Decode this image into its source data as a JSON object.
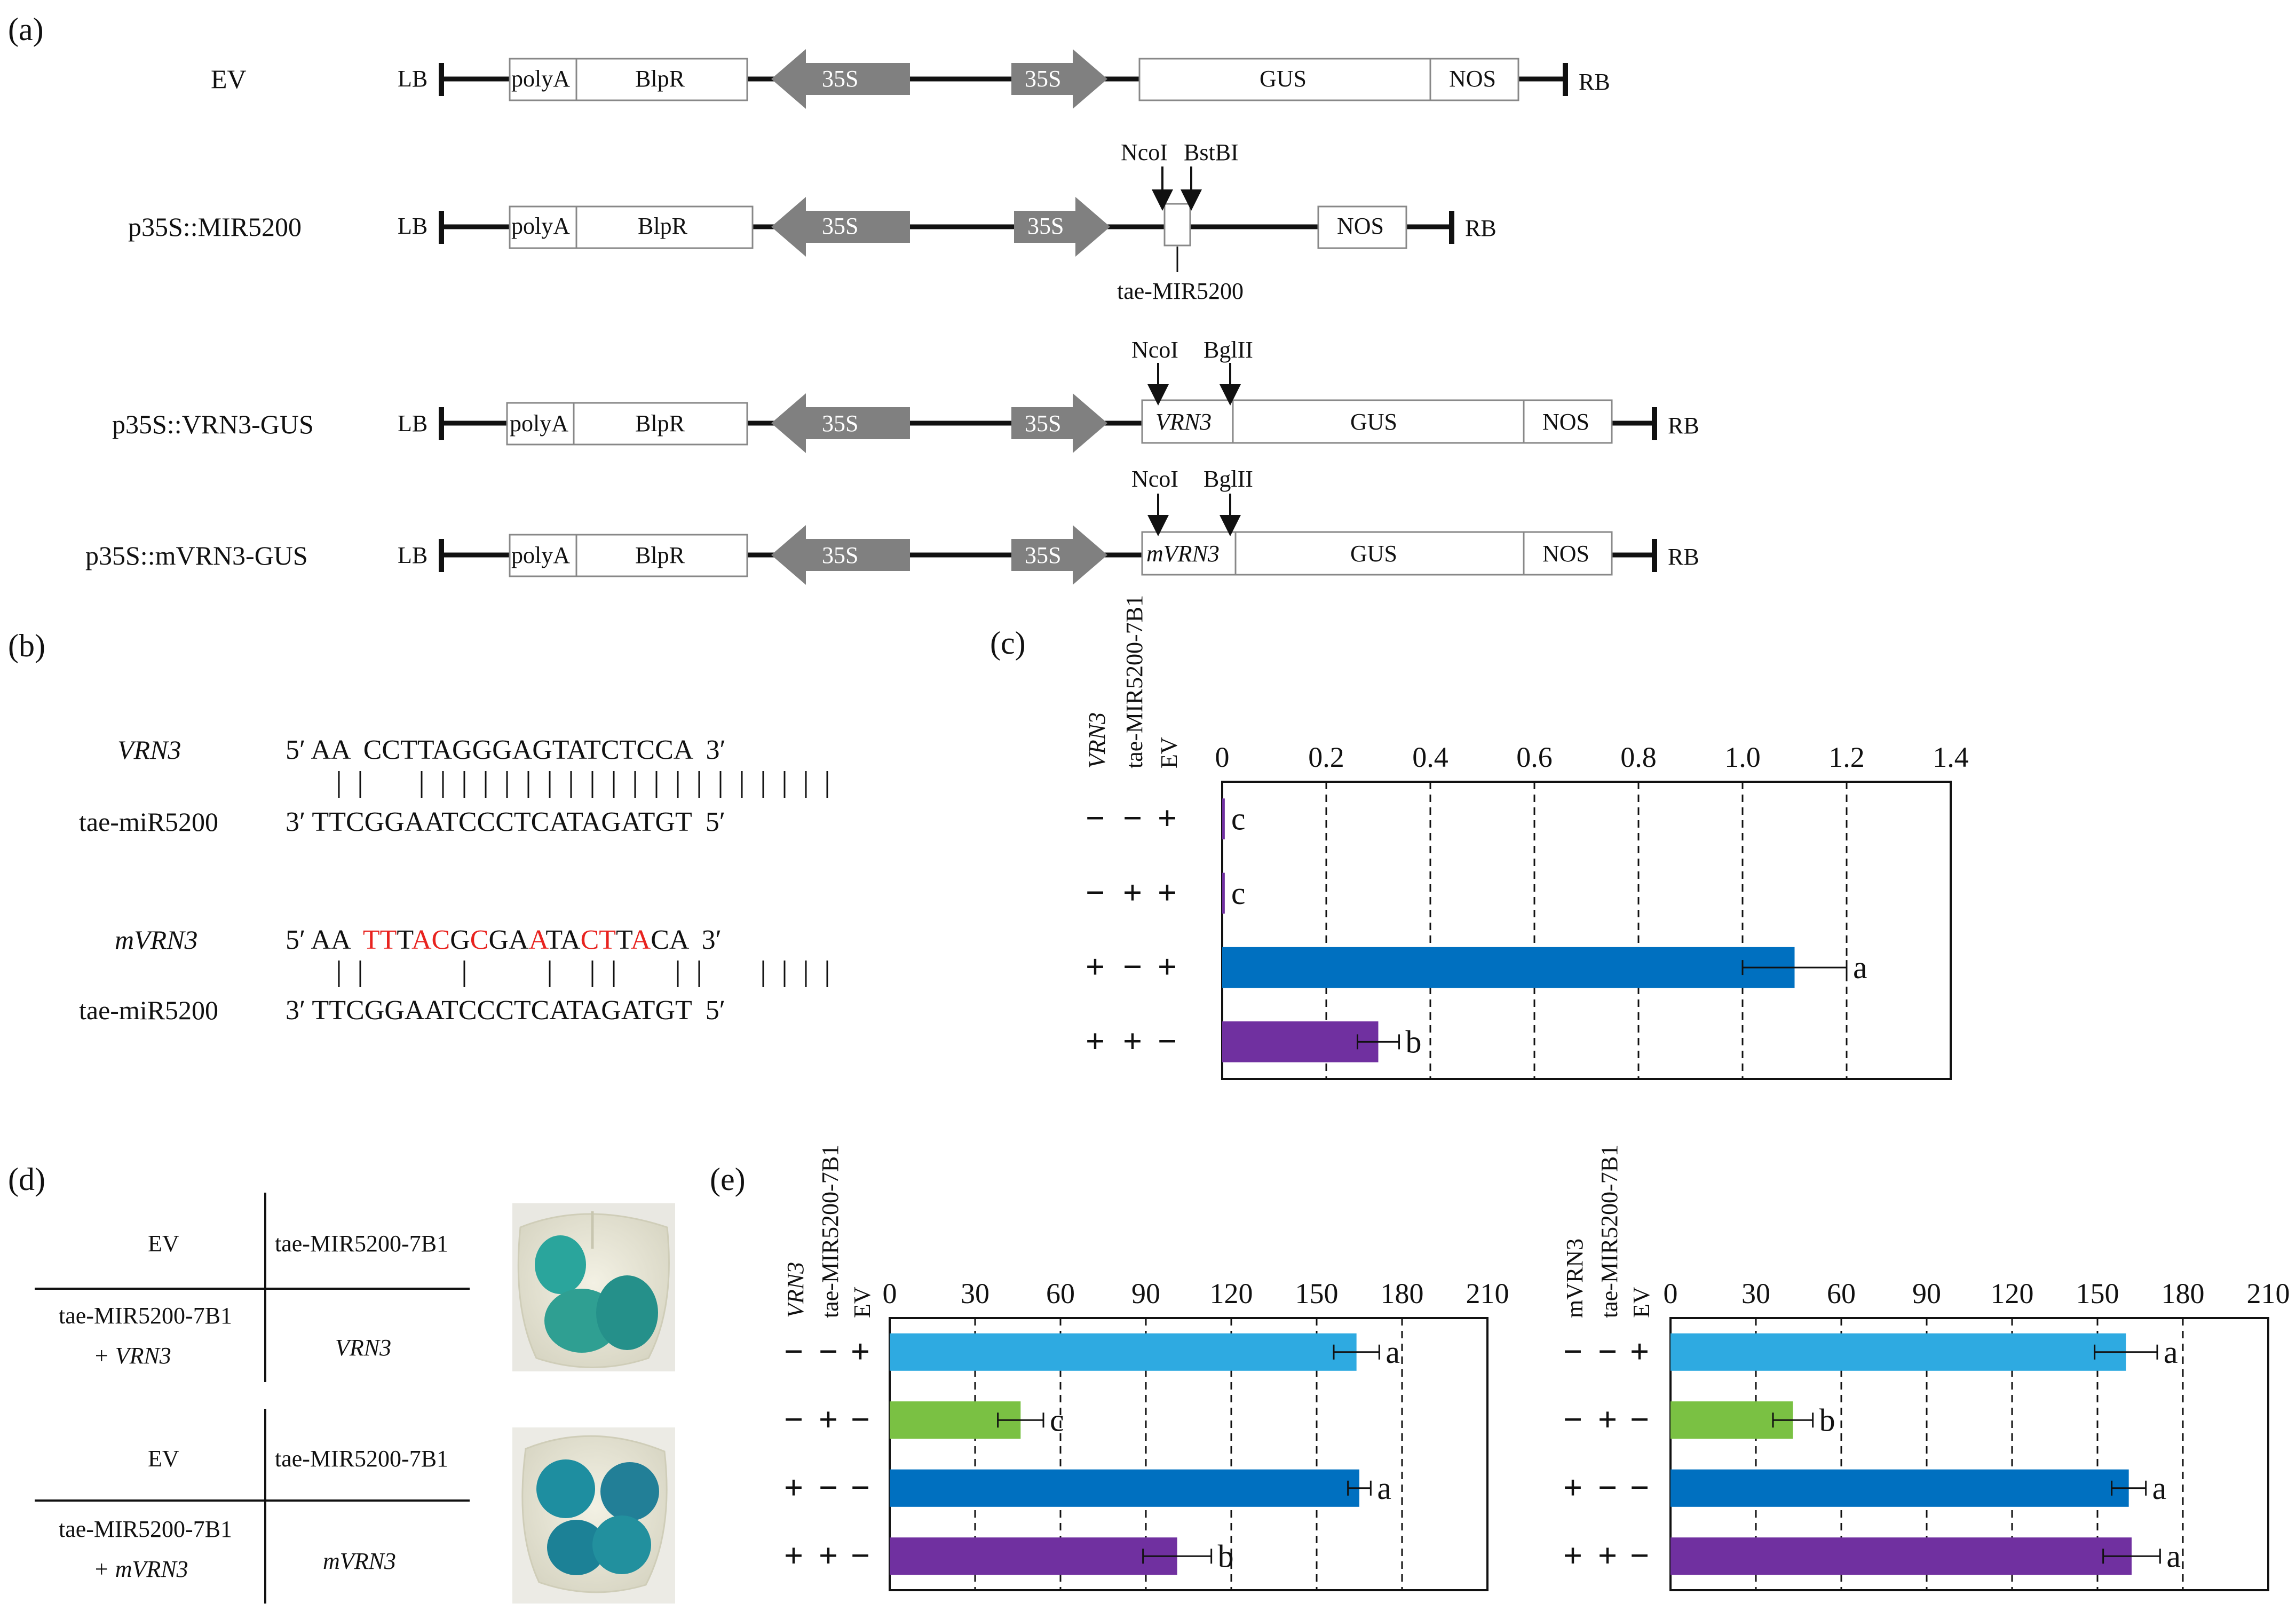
{
  "panel_labels": {
    "a": "(a)",
    "b": "(b)",
    "c": "(c)",
    "d": "(d)",
    "e": "(e)"
  },
  "panel_a": {
    "constructs": [
      {
        "name": "EV",
        "left_end": "LB",
        "right_end": "RB",
        "elements": [
          "polyA",
          "BlpR",
          "35S",
          "35S",
          "GUS",
          "NOS"
        ]
      },
      {
        "name": "p35S::MIR5200",
        "left_end": "LB",
        "right_end": "RB",
        "elements": [
          "polyA",
          "BlpR",
          "35S",
          "35S",
          "NOS"
        ],
        "sites": [
          "NcoI",
          "BstBI"
        ],
        "insert": "tae-MIR5200"
      },
      {
        "name": "p35S::VRN3-GUS",
        "left_end": "LB",
        "right_end": "RB",
        "elements": [
          "polyA",
          "BlpR",
          "35S",
          "35S",
          "VRN3",
          "GUS",
          "NOS"
        ],
        "sites": [
          "NcoI",
          "BglII"
        ]
      },
      {
        "name": "p35S::mVRN3-GUS",
        "left_end": "LB",
        "right_end": "RB",
        "elements": [
          "polyA",
          "BlpR",
          "35S",
          "35S",
          "mVRN3",
          "GUS",
          "NOS"
        ],
        "sites": [
          "NcoI",
          "BglII"
        ]
      }
    ]
  },
  "panel_b": {
    "pairs": [
      {
        "target_name": "VRN3",
        "target_seq": "5′ AA  CCTTAGGGAGTATCTCCA  3′",
        "mirna_name": "tae-miR5200",
        "mirna_seq": "3′ TTCGGAATCCCTCATAGATGT  5′"
      },
      {
        "target_name": "mVRN3",
        "target_seq": "5′ AA  TTTACGCGAATACTTACA  3′",
        "mirna_name": "tae-miR5200",
        "mirna_seq": "3′ TTCGGAATCCCTCATAGATGT  5′",
        "mismatch_color": "#e8231f"
      }
    ]
  },
  "panel_d": {
    "tables": [
      {
        "top_left": "EV",
        "top_right": "tae-MIR5200-7B1",
        "bottom_left_1": "tae-MIR5200-7B1",
        "bottom_left_2": "+ VRN3",
        "bottom_right": "VRN3"
      },
      {
        "top_left": "EV",
        "top_right": "tae-MIR5200-7B1",
        "bottom_left_1": "tae-MIR5200-7B1",
        "bottom_left_2": "+ mVRN3",
        "bottom_right": "mVRN3"
      }
    ],
    "leaf_stain_color": "#2aa59c"
  },
  "chart_data": [
    {
      "id": "c",
      "type": "bar",
      "orientation": "horizontal",
      "title": "",
      "xlabel": "",
      "ylabel": "",
      "xlim": [
        0,
        1.4
      ],
      "ticks": [
        "0",
        "0.2",
        "0.4",
        "0.6",
        "0.8",
        "1.0",
        "1.2",
        "1.4"
      ],
      "tick_values": [
        0,
        0.2,
        0.4,
        0.6,
        0.8,
        1.0,
        1.2,
        1.4
      ],
      "grid": "vertical dashed",
      "row_headers": [
        "VRN3",
        "tae-MIR5200-7B1",
        "EV"
      ],
      "rows": [
        {
          "signs": [
            "−",
            "−",
            "+"
          ],
          "value": 0.005,
          "error": 0,
          "letter": "c",
          "color": "#7030a0"
        },
        {
          "signs": [
            "−",
            "+",
            "+"
          ],
          "value": 0.005,
          "error": 0,
          "letter": "c",
          "color": "#7030a0"
        },
        {
          "signs": [
            "+",
            "−",
            "+"
          ],
          "value": 1.1,
          "error": 0.1,
          "letter": "a",
          "color": "#0070c0"
        },
        {
          "signs": [
            "+",
            "+",
            "−"
          ],
          "value": 0.3,
          "error": 0.04,
          "letter": "b",
          "color": "#7030a0"
        }
      ]
    },
    {
      "id": "e1",
      "type": "bar",
      "orientation": "horizontal",
      "title": "",
      "xlabel": "",
      "ylabel": "",
      "xlim": [
        0,
        210
      ],
      "ticks": [
        "0",
        "30",
        "60",
        "90",
        "120",
        "150",
        "180",
        "210"
      ],
      "tick_values": [
        0,
        30,
        60,
        90,
        120,
        150,
        180,
        210
      ],
      "grid": "vertical dashed",
      "row_headers": [
        "VRN3",
        "tae-MIR5200-7B1",
        "EV"
      ],
      "rows": [
        {
          "signs": [
            "−",
            "−",
            "+"
          ],
          "value": 164,
          "error": 8,
          "letter": "a",
          "color": "#2eaae1"
        },
        {
          "signs": [
            "−",
            "+",
            "−"
          ],
          "value": 46,
          "error": 8,
          "letter": "c",
          "color": "#7ac143"
        },
        {
          "signs": [
            "+",
            "−",
            "−"
          ],
          "value": 165,
          "error": 4,
          "letter": "a",
          "color": "#0070c0"
        },
        {
          "signs": [
            "+",
            "+",
            "−"
          ],
          "value": 101,
          "error": 12,
          "letter": "b",
          "color": "#7030a0"
        }
      ]
    },
    {
      "id": "e2",
      "type": "bar",
      "orientation": "horizontal",
      "title": "",
      "xlabel": "",
      "ylabel": "",
      "xlim": [
        0,
        210
      ],
      "ticks": [
        "0",
        "30",
        "60",
        "90",
        "120",
        "150",
        "180",
        "210"
      ],
      "tick_values": [
        0,
        30,
        60,
        90,
        120,
        150,
        180,
        210
      ],
      "grid": "vertical dashed",
      "row_headers": [
        "mVRN3",
        "tae-MIR5200-7B1",
        "EV"
      ],
      "rows": [
        {
          "signs": [
            "−",
            "−",
            "+"
          ],
          "value": 160,
          "error": 11,
          "letter": "a",
          "color": "#2eaae1"
        },
        {
          "signs": [
            "−",
            "+",
            "−"
          ],
          "value": 43,
          "error": 7,
          "letter": "b",
          "color": "#7ac143"
        },
        {
          "signs": [
            "+",
            "−",
            "−"
          ],
          "value": 161,
          "error": 6,
          "letter": "a",
          "color": "#0070c0"
        },
        {
          "signs": [
            "+",
            "+",
            "−"
          ],
          "value": 162,
          "error": 10,
          "letter": "a",
          "color": "#7030a0"
        }
      ]
    }
  ]
}
